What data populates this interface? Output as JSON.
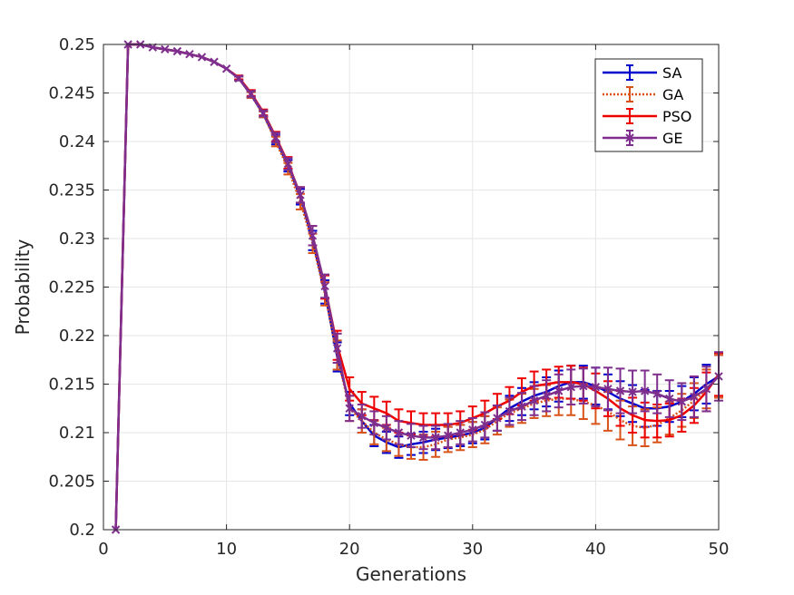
{
  "chart_data": {
    "type": "line",
    "title": "",
    "xlabel": "Generations",
    "ylabel": "Probability",
    "xlim": [
      0,
      50
    ],
    "ylim": [
      0.2,
      0.25
    ],
    "xticks": [
      "0",
      "10",
      "20",
      "30",
      "40",
      "50"
    ],
    "yticks": [
      "0.2",
      "0.205",
      "0.21",
      "0.215",
      "0.22",
      "0.225",
      "0.23",
      "0.235",
      "0.24",
      "0.245",
      "0.25"
    ],
    "grid": true,
    "legend_position": "top-right",
    "x": [
      1,
      2,
      3,
      4,
      5,
      6,
      7,
      8,
      9,
      10,
      11,
      12,
      13,
      14,
      15,
      16,
      17,
      18,
      19,
      20,
      21,
      22,
      23,
      24,
      25,
      26,
      27,
      28,
      29,
      30,
      31,
      32,
      33,
      34,
      35,
      36,
      37,
      38,
      39,
      40,
      41,
      42,
      43,
      44,
      45,
      46,
      47,
      48,
      49,
      50
    ],
    "series": [
      {
        "name": "SA",
        "color": "#0000cc",
        "line_style": "solid",
        "marker": "none",
        "values": [
          0.2,
          0.25,
          0.25,
          0.2497,
          0.2495,
          0.2493,
          0.249,
          0.2487,
          0.2482,
          0.2475,
          0.2465,
          0.2448,
          0.2428,
          0.2402,
          0.2375,
          0.2343,
          0.2298,
          0.2245,
          0.2178,
          0.213,
          0.2112,
          0.2097,
          0.209,
          0.2085,
          0.2088,
          0.209,
          0.2093,
          0.2095,
          0.2097,
          0.21,
          0.2105,
          0.2115,
          0.2125,
          0.2132,
          0.2138,
          0.2142,
          0.2148,
          0.2152,
          0.2152,
          0.2148,
          0.2142,
          0.2135,
          0.213,
          0.2125,
          0.2125,
          0.2127,
          0.2132,
          0.214,
          0.215,
          0.2158
        ],
        "errors": [
          0,
          0,
          0,
          0,
          0,
          0,
          0,
          0,
          0,
          0,
          0.0002,
          0.0003,
          0.0003,
          0.0005,
          0.0006,
          0.0008,
          0.001,
          0.0012,
          0.0015,
          0.0012,
          0.0012,
          0.0011,
          0.0011,
          0.0011,
          0.0011,
          0.0011,
          0.0011,
          0.0011,
          0.0011,
          0.0011,
          0.0012,
          0.0013,
          0.0013,
          0.0014,
          0.0014,
          0.0015,
          0.0016,
          0.0017,
          0.0017,
          0.0019,
          0.0018,
          0.0018,
          0.0019,
          0.0019,
          0.0018,
          0.0016,
          0.0016,
          0.0017,
          0.002,
          0.0022
        ]
      },
      {
        "name": "GA",
        "color": "#d95319",
        "line_style": "dotted",
        "marker": "none",
        "values": [
          0.2,
          0.25,
          0.25,
          0.2497,
          0.2495,
          0.2493,
          0.249,
          0.2487,
          0.2482,
          0.2475,
          0.2465,
          0.2448,
          0.2428,
          0.24,
          0.2372,
          0.2338,
          0.2295,
          0.2243,
          0.218,
          0.2125,
          0.2112,
          0.21,
          0.2093,
          0.2088,
          0.2085,
          0.2085,
          0.2088,
          0.2093,
          0.2095,
          0.2098,
          0.2103,
          0.2112,
          0.212,
          0.2125,
          0.213,
          0.2133,
          0.2135,
          0.2135,
          0.2132,
          0.2128,
          0.2122,
          0.2113,
          0.2107,
          0.2105,
          0.2108,
          0.2115,
          0.2123,
          0.2133,
          0.2145,
          0.2158
        ],
        "errors": [
          0,
          0,
          0,
          0,
          0,
          0,
          0,
          0,
          0,
          0,
          0.0002,
          0.0003,
          0.0003,
          0.0005,
          0.0006,
          0.0008,
          0.001,
          0.0012,
          0.0015,
          0.0013,
          0.0012,
          0.0012,
          0.0012,
          0.0012,
          0.0012,
          0.0013,
          0.0013,
          0.0013,
          0.0013,
          0.0013,
          0.0014,
          0.0014,
          0.0014,
          0.0015,
          0.0015,
          0.0016,
          0.0017,
          0.0017,
          0.0018,
          0.0019,
          0.002,
          0.002,
          0.002,
          0.0019,
          0.0018,
          0.0017,
          0.0017,
          0.0018,
          0.002,
          0.0022
        ]
      },
      {
        "name": "PSO",
        "color": "#ee0000",
        "line_style": "solid",
        "marker": "none",
        "values": [
          0.2,
          0.25,
          0.25,
          0.2497,
          0.2495,
          0.2493,
          0.249,
          0.2487,
          0.2482,
          0.2475,
          0.2466,
          0.245,
          0.243,
          0.2405,
          0.2378,
          0.2345,
          0.2303,
          0.225,
          0.219,
          0.2145,
          0.213,
          0.2125,
          0.212,
          0.2112,
          0.211,
          0.2108,
          0.2108,
          0.2108,
          0.211,
          0.2115,
          0.212,
          0.2127,
          0.2133,
          0.2142,
          0.2148,
          0.215,
          0.2152,
          0.2152,
          0.215,
          0.2143,
          0.2135,
          0.2125,
          0.2118,
          0.2113,
          0.2112,
          0.2113,
          0.2118,
          0.2128,
          0.2142,
          0.216
        ],
        "errors": [
          0,
          0,
          0,
          0,
          0,
          0,
          0,
          0,
          0,
          0,
          0.0002,
          0.0003,
          0.0003,
          0.0005,
          0.0006,
          0.0008,
          0.001,
          0.0012,
          0.0015,
          0.0012,
          0.0012,
          0.0012,
          0.0012,
          0.0012,
          0.0012,
          0.0012,
          0.0012,
          0.0012,
          0.0012,
          0.0012,
          0.0013,
          0.0013,
          0.0014,
          0.0014,
          0.0015,
          0.0015,
          0.0016,
          0.0017,
          0.0017,
          0.0018,
          0.0018,
          0.0018,
          0.0018,
          0.0018,
          0.0017,
          0.0017,
          0.0017,
          0.0018,
          0.002,
          0.0022
        ]
      },
      {
        "name": "GE",
        "color": "#7e2f8e",
        "line_style": "solid",
        "marker": "x",
        "values": [
          0.2,
          0.25,
          0.25,
          0.2497,
          0.2495,
          0.2493,
          0.249,
          0.2487,
          0.2482,
          0.2475,
          0.2465,
          0.2449,
          0.2429,
          0.2404,
          0.2377,
          0.2345,
          0.2303,
          0.2251,
          0.2187,
          0.2125,
          0.2117,
          0.211,
          0.2105,
          0.21,
          0.2097,
          0.2095,
          0.2095,
          0.2097,
          0.21,
          0.2103,
          0.2108,
          0.2115,
          0.2122,
          0.2127,
          0.2133,
          0.2138,
          0.2143,
          0.2147,
          0.2148,
          0.2147,
          0.2145,
          0.2143,
          0.2142,
          0.2143,
          0.214,
          0.2135,
          0.2132,
          0.2137,
          0.2145,
          0.2158
        ],
        "errors": [
          0,
          0,
          0,
          0,
          0,
          0,
          0,
          0,
          0,
          0,
          0.0002,
          0.0003,
          0.0003,
          0.0005,
          0.0006,
          0.0008,
          0.001,
          0.0012,
          0.0015,
          0.0013,
          0.0012,
          0.0012,
          0.0012,
          0.0012,
          0.0012,
          0.0012,
          0.0012,
          0.0012,
          0.0012,
          0.0012,
          0.0013,
          0.0013,
          0.0014,
          0.0014,
          0.0015,
          0.0016,
          0.0017,
          0.0018,
          0.0018,
          0.002,
          0.0022,
          0.0023,
          0.0022,
          0.0021,
          0.002,
          0.0019,
          0.0019,
          0.0021,
          0.0023,
          0.0025
        ]
      }
    ]
  }
}
